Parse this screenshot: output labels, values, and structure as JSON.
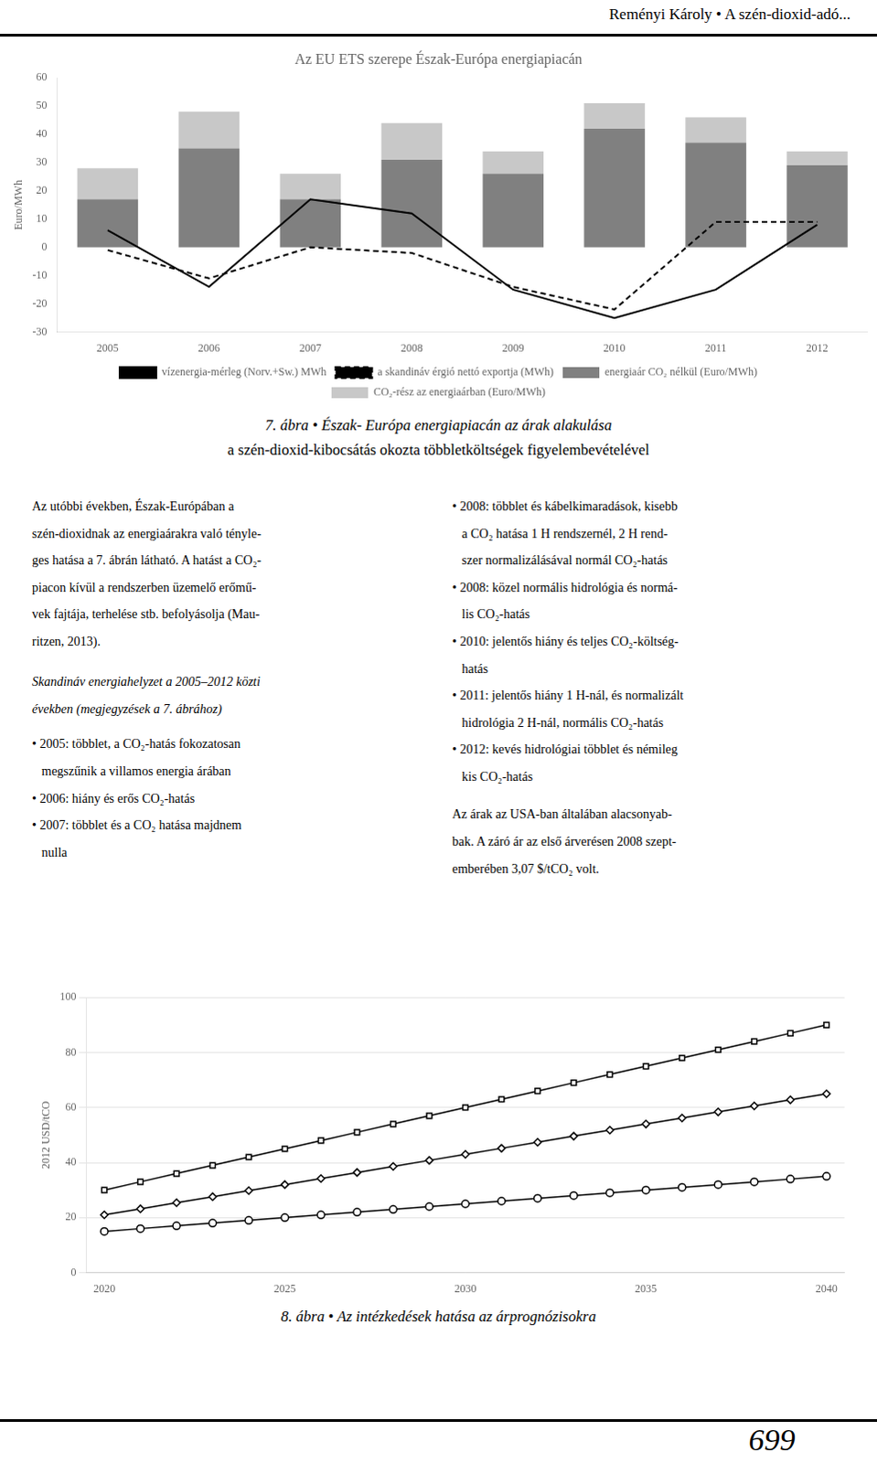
{
  "header_title": "Reményi Károly • A szén-dioxid-adó...",
  "page_number": "699",
  "body_left": {
    "paragraph": [
      "Az utóbbi években, Észak-Európában a",
      "szén-dioxidnak az energiaárakra való tényle-",
      "ges hatása a 7. ábrán látható. A hatást a CO₂-",
      "piacon kívül a rendszerben üzemelő erőmű-",
      "vek fajtája, terhelése stb. befolyásolja (Mau-",
      "ritzen, 2013)."
    ],
    "heading": [
      "Skandináv energiahelyzet a 2005–2012 közti",
      "években (megjegyzések a 7. ábrához)"
    ],
    "bullets": [
      [
        "• 2005: többlet, a CO₂-hatás fokozatosan",
        "   megszűnik a villamos energia árában"
      ],
      [
        "• 2006: hiány és erős CO₂-hatás"
      ],
      [
        "• 2007: többlet és a CO₂ hatása majdnem",
        "   nulla"
      ]
    ]
  },
  "body_right": {
    "bullets": [
      [
        "• 2008: többlet és kábelkimaradások, kisebb",
        "   a CO₂ hatása 1 H rendszernél, 2 H rend-",
        "   szer normalizálásával normál CO₂-hatás"
      ],
      [
        "• 2008: közel normális hidrológia és normá-",
        "   lis CO₂-hatás"
      ],
      [
        "• 2010: jelentős hiány és teljes CO₂-költség-",
        "   hatás"
      ],
      [
        "• 2011: jelentős hiány 1 H-nál, és normalizált",
        "   hidrológia 2 H-nál, normális CO₂-hatás"
      ],
      [
        "• 2012: kevés hidrológiai többlet és némileg",
        "   kis CO₂-hatás"
      ]
    ],
    "paragraph": [
      "Az árak az USA-ban általában alacsonyab-",
      "bak. A záró ár az első árverésen 2008 szept-",
      "emberében 3,07 $/tCO₂ volt."
    ]
  },
  "chart_data": [
    {
      "type": "bar",
      "title": "Az EU ETS szerepe Észak-Európa energiapiacán",
      "ylabel": "Euro/MWh",
      "caption": [
        "7. ábra • Észak- Európa energiapiacán az árak alakulása",
        "a szén-dioxid-kibocsátás okozta többletköltségek figyelembevételével"
      ],
      "categories": [
        2005,
        2006,
        2007,
        2008,
        2009,
        2010,
        2011,
        2012
      ],
      "stacked": true,
      "grid": false,
      "legend": "bottom",
      "ylim": [
        -30,
        60
      ],
      "yticks": [
        -30,
        -20,
        -10,
        0,
        10,
        20,
        30,
        40,
        50,
        60
      ],
      "series": [
        {
          "name": "energiaár CO₂ nélkül (Euro/MWh)",
          "type": "bar",
          "color": "#808080",
          "values": [
            17,
            35,
            17,
            31,
            26,
            42,
            37,
            29
          ]
        },
        {
          "name": "CO₂-rész az energiaárban (Euro/MWh)",
          "type": "bar",
          "color": "#c8c8c8",
          "values": [
            11,
            13,
            9,
            13,
            8,
            9,
            9,
            5
          ]
        },
        {
          "name": "vízenergia-mérleg (Norv.+Sw.) MWh",
          "type": "line",
          "color": "#000000",
          "line_style": "solid",
          "values": [
            6,
            -14,
            17,
            12,
            -15,
            -25,
            -15,
            8
          ]
        },
        {
          "name": "a skandináv érgió nettó exportja (MWh)",
          "type": "line",
          "color": "#000000",
          "line_style": "dashed",
          "values": [
            -1,
            -11,
            0,
            -2,
            -14,
            -22,
            9,
            9
          ]
        }
      ]
    },
    {
      "type": "line",
      "ylabel": "2012 USD/tCO",
      "caption": [
        "8. ábra • Az intézkedések hatása az árprognózisokra"
      ],
      "grid": "y",
      "x": [
        2020,
        2021,
        2022,
        2023,
        2024,
        2025,
        2026,
        2027,
        2028,
        2029,
        2030,
        2031,
        2032,
        2033,
        2034,
        2035,
        2036,
        2037,
        2038,
        2039,
        2040
      ],
      "xlim": [
        2019.5,
        2040.5
      ],
      "xticks": [
        2020,
        2025,
        2030,
        2035,
        2040
      ],
      "ylim": [
        0,
        100
      ],
      "yticks": [
        0,
        20,
        40,
        60,
        80,
        100
      ],
      "series": [
        {
          "color": "#000000",
          "marker": "square",
          "line_style": "solid",
          "values": [
            30,
            33,
            36,
            39,
            42,
            45,
            48,
            51,
            54,
            57,
            60,
            63,
            66,
            69,
            72,
            75,
            78,
            81,
            84,
            87,
            90
          ]
        },
        {
          "color": "#000000",
          "marker": "diamond",
          "line_style": "solid",
          "values": [
            21,
            23.2,
            25.4,
            27.6,
            29.8,
            32,
            34.2,
            36.4,
            38.6,
            40.8,
            43,
            45.2,
            47.4,
            49.6,
            51.8,
            54,
            56.2,
            58.4,
            60.6,
            62.8,
            65
          ]
        },
        {
          "color": "#000000",
          "marker": "circle",
          "line_style": "solid",
          "values": [
            15,
            16,
            17,
            18,
            19,
            20,
            21,
            22,
            23,
            24,
            25,
            26,
            27,
            28,
            29,
            30,
            31,
            32,
            33,
            34,
            35
          ]
        }
      ]
    }
  ]
}
